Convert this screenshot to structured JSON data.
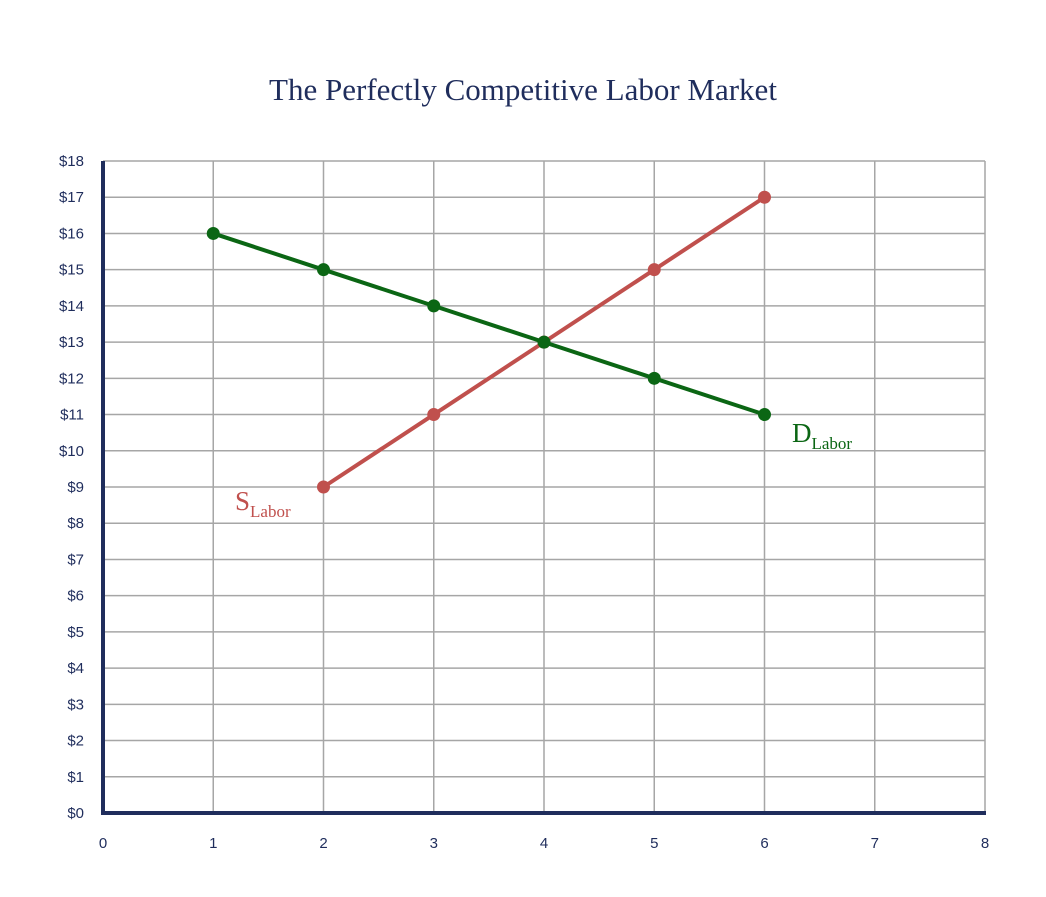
{
  "chart_data": {
    "type": "line",
    "title": "The Perfectly Competitive Labor Market",
    "xlabel": "",
    "ylabel": "",
    "xlim": [
      0,
      8
    ],
    "ylim": [
      0,
      18
    ],
    "x_ticks": [
      "0",
      "1",
      "2",
      "3",
      "4",
      "5",
      "6",
      "7",
      "8"
    ],
    "y_ticks": [
      "$0",
      "$1",
      "$2",
      "$3",
      "$4",
      "$5",
      "$6",
      "$7",
      "$8",
      "$9",
      "$10",
      "$11",
      "$12",
      "$13",
      "$14",
      "$15",
      "$16",
      "$17",
      "$18"
    ],
    "grid": true,
    "series": [
      {
        "name": "SLabor",
        "label_main": "S",
        "label_sub": "Labor",
        "color": "#c0504d",
        "x": [
          2,
          3,
          4,
          5,
          6
        ],
        "y": [
          9,
          11,
          13,
          15,
          17
        ]
      },
      {
        "name": "DLabor",
        "label_main": "D",
        "label_sub": "Labor",
        "color": "#0b6614",
        "x": [
          1,
          2,
          3,
          4,
          5,
          6
        ],
        "y": [
          16,
          15,
          14,
          13,
          12,
          11
        ]
      }
    ]
  }
}
